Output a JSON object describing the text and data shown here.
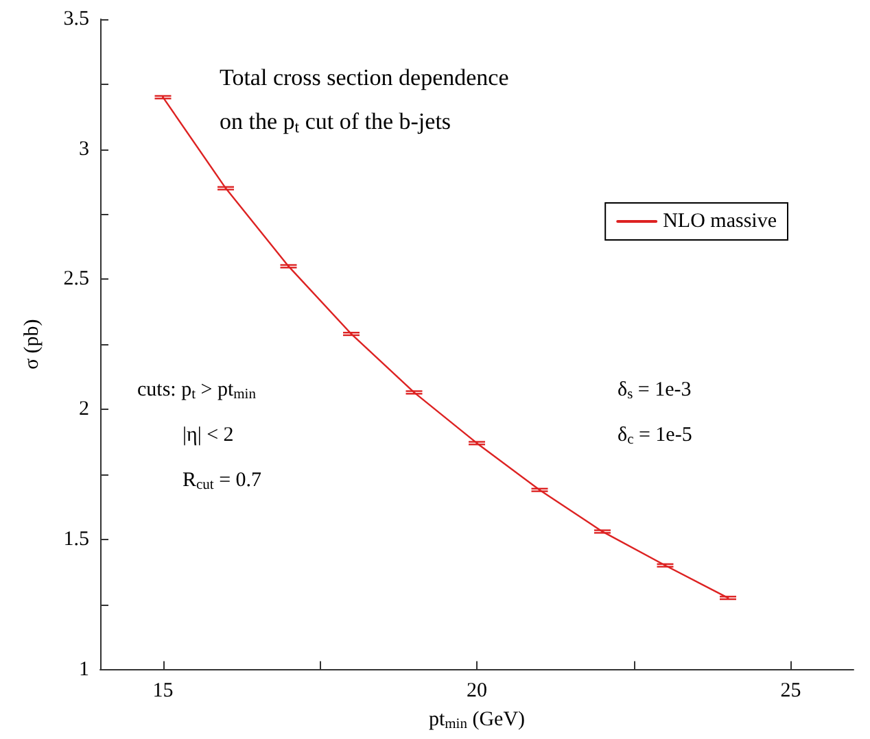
{
  "chart_data": {
    "type": "line",
    "xlabel": "pt$_{min}$ (GeV)",
    "ylabel": "σ (pb)",
    "annotations": [
      "Total cross section dependence",
      "on the p$_{t}$ cut of the b-jets",
      "cuts: p$_{t}$ > pt$_{min}$",
      "|η| < 2",
      "R$_{cut}$ = 0.7",
      "δ$_{s}$ = 1e-3",
      "δ$_{c}$ = 1e-5"
    ],
    "x": [
      15,
      16,
      17,
      18,
      19,
      20,
      21,
      22,
      23,
      24
    ],
    "series": [
      {
        "name": "NLO massive",
        "color": "#dd2222",
        "values": [
          3.2,
          2.85,
          2.55,
          2.29,
          2.065,
          1.87,
          1.69,
          1.53,
          1.4,
          1.275
        ],
        "errors": [
          0.005,
          0.005,
          0.005,
          0.005,
          0.005,
          0.005,
          0.005,
          0.005,
          0.005,
          0.005
        ]
      }
    ],
    "xlim": [
      14,
      26
    ],
    "xticks": [
      15,
      {
        "value": 17.5,
        "label": null
      },
      20,
      {
        "value": 22.5,
        "label": null
      },
      25
    ],
    "ylim": [
      1,
      3.5
    ],
    "yticks": [
      1,
      {
        "value": 1.25,
        "label": null
      },
      1.5,
      {
        "value": 1.75,
        "label": null
      },
      2,
      {
        "value": 2.25,
        "label": null
      },
      2.5,
      {
        "value": 2.75,
        "label": null
      },
      3,
      {
        "value": 3.25,
        "label": null
      },
      3.5
    ],
    "grid": false,
    "legend": "top right",
    "marker": "none",
    "line_style": "solid"
  }
}
